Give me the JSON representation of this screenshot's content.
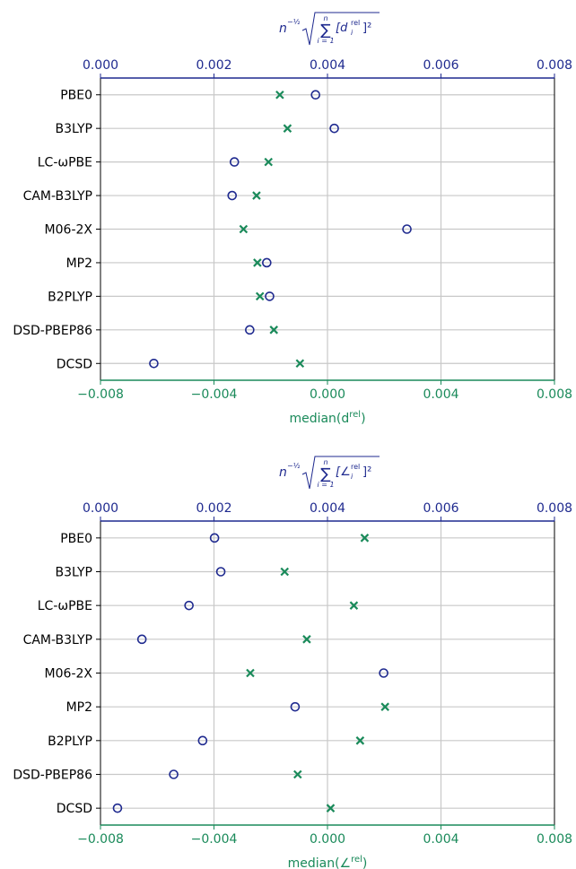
{
  "colors": {
    "rms": "#1f2a8f",
    "median": "#1a8a5a",
    "grid": "#c8c8c8",
    "axis": "#000000"
  },
  "chart_data": [
    {
      "type": "scatter",
      "categories": [
        "PBE0",
        "B3LYP",
        "LC-ωPBE",
        "CAM-B3LYP",
        "M06-2X",
        "MP2",
        "B2PLYP",
        "DSD-PBEP86",
        "DCSD"
      ],
      "top_axis": {
        "label_prefix": "n",
        "label_exponent": "−½",
        "label_sum_top": "n",
        "label_sum_bottom": "i = 1",
        "label_term": "[d",
        "label_term_sub": "i",
        "label_term_sup": "rel",
        "label_term_end": "]²",
        "ticks": [
          "0.000",
          "0.002",
          "0.004",
          "0.006",
          "0.008"
        ],
        "lim": [
          0,
          0.008
        ]
      },
      "bottom_axis": {
        "label_prefix": "median(d",
        "label_sup": "rel",
        "label_end": ")",
        "ticks": [
          "−0.008",
          "−0.004",
          "0.000",
          "0.004",
          "0.008"
        ],
        "lim": [
          -0.008,
          0.008
        ]
      },
      "series": [
        {
          "marker": "circle",
          "axis": "top",
          "values": [
            0.00379,
            0.00412,
            0.00236,
            0.00232,
            0.0054,
            0.00293,
            0.00298,
            0.00263,
            0.00094
          ]
        },
        {
          "marker": "x",
          "axis": "bottom",
          "values": [
            -0.00168,
            -0.00141,
            -0.00208,
            -0.0025,
            -0.00296,
            -0.00247,
            -0.00238,
            -0.00189,
            -0.00097
          ]
        }
      ],
      "grid": true
    },
    {
      "type": "scatter",
      "categories": [
        "PBE0",
        "B3LYP",
        "LC-ωPBE",
        "CAM-B3LYP",
        "M06-2X",
        "MP2",
        "B2PLYP",
        "DSD-PBEP86",
        "DCSD"
      ],
      "top_axis": {
        "label_prefix": "n",
        "label_exponent": "−½",
        "label_sum_top": "n",
        "label_sum_bottom": "i = 1",
        "label_term": "[∠",
        "label_term_sub": "i",
        "label_term_sup": "rel",
        "label_term_end": "]²",
        "ticks": [
          "0.000",
          "0.002",
          "0.004",
          "0.006",
          "0.008"
        ],
        "lim": [
          0,
          0.008
        ]
      },
      "bottom_axis": {
        "label_prefix": "median(∠",
        "label_sup": "rel",
        "label_end": ")",
        "ticks": [
          "−0.008",
          "−0.004",
          "0.000",
          "0.004",
          "0.008"
        ],
        "lim": [
          -0.008,
          0.008
        ]
      },
      "series": [
        {
          "marker": "circle",
          "axis": "top",
          "values": [
            0.00201,
            0.00212,
            0.00156,
            0.00073,
            0.00499,
            0.00343,
            0.0018,
            0.00129,
            0.0003
          ]
        },
        {
          "marker": "x",
          "axis": "bottom",
          "values": [
            0.00131,
            -0.00151,
            0.00093,
            -0.00073,
            -0.00272,
            0.00203,
            0.00115,
            -0.00105,
            0.00011
          ]
        }
      ],
      "grid": true
    }
  ]
}
